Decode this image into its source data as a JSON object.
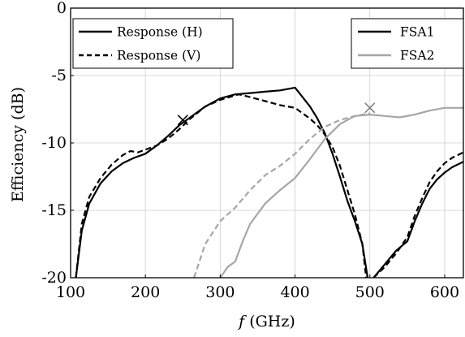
{
  "chart_data": {
    "type": "line",
    "title": "",
    "xlabel_symbol": "f",
    "xlabel_unit": "(GHz)",
    "ylabel": "Efficiency (dB)",
    "xlim": [
      100,
      625
    ],
    "ylim": [
      -20,
      0
    ],
    "xticks": [
      "100",
      "200",
      "300",
      "400",
      "500",
      "600"
    ],
    "yticks": [
      "0",
      "-5",
      "-10",
      "-15",
      "-20"
    ],
    "grid": true,
    "colors": {
      "black": "#000000",
      "gray": "#a6a6a6"
    },
    "legends": [
      {
        "placement": "top-left",
        "entries": [
          {
            "label": "Response (H)",
            "style": "solid",
            "color": "#000000"
          },
          {
            "label": "Response (V)",
            "style": "dashed",
            "color": "#000000"
          }
        ]
      },
      {
        "placement": "top-right",
        "entries": [
          {
            "label": "FSA1",
            "style": "solid",
            "color": "#000000"
          },
          {
            "label": "FSA2",
            "style": "solid",
            "color": "#a6a6a6"
          }
        ]
      }
    ],
    "series": [
      {
        "color": "#000000",
        "style": "solid",
        "x": [
          107,
          115,
          125,
          140,
          155,
          170,
          185,
          200,
          215,
          230,
          245,
          260,
          280,
          300,
          320,
          340,
          360,
          380,
          400,
          410,
          420,
          430,
          440,
          450,
          460,
          470,
          480,
          490,
          497
        ],
        "y": [
          -20,
          -16.5,
          -14.5,
          -13,
          -12.1,
          -11.5,
          -11.1,
          -10.8,
          -10.2,
          -9.5,
          -8.7,
          -8.1,
          -7.3,
          -6.7,
          -6.4,
          -6.3,
          -6.2,
          -6.1,
          -5.9,
          -6.6,
          -7.3,
          -8.2,
          -9.3,
          -10.8,
          -12.5,
          -14.3,
          -15.8,
          -17.5,
          -20
        ]
      },
      {
        "color": "#000000",
        "style": "dashed",
        "x": [
          107,
          115,
          125,
          140,
          155,
          170,
          180,
          190,
          200,
          215,
          230,
          245,
          260,
          280,
          300,
          325,
          340,
          360,
          380,
          400,
          410,
          420,
          430,
          440,
          450,
          460,
          470,
          480,
          490,
          495
        ],
        "y": [
          -20,
          -16,
          -14,
          -12.6,
          -11.6,
          -10.9,
          -10.6,
          -10.7,
          -10.5,
          -10.2,
          -9.7,
          -9,
          -8.2,
          -7.3,
          -6.8,
          -6.4,
          -6.6,
          -6.9,
          -7.2,
          -7.4,
          -7.8,
          -8.2,
          -8.7,
          -9.4,
          -10.3,
          -11.7,
          -13.5,
          -15.3,
          -17.5,
          -20
        ]
      },
      {
        "color": "#a6a6a6",
        "style": "solid",
        "x": [
          300,
          310,
          320,
          330,
          340,
          360,
          380,
          400,
          420,
          440,
          460,
          480,
          500,
          520,
          540,
          560,
          580,
          600,
          625
        ],
        "y": [
          -20,
          -19.2,
          -18.8,
          -17.3,
          -16,
          -14.5,
          -13.5,
          -12.6,
          -11.2,
          -9.7,
          -8.6,
          -8,
          -7.9,
          -8,
          -8.1,
          -7.9,
          -7.6,
          -7.4,
          -7.4
        ]
      },
      {
        "color": "#a6a6a6",
        "style": "dashed",
        "x": [
          265,
          280,
          300,
          320,
          340,
          360,
          380,
          400,
          420,
          440,
          460,
          480,
          500
        ],
        "y": [
          -20,
          -17.5,
          -15.8,
          -14.8,
          -13.5,
          -12.4,
          -11.7,
          -10.8,
          -9.7,
          -8.8,
          -8.3,
          -8,
          -7.8
        ]
      },
      {
        "color": "#000000",
        "style": "solid",
        "x": [
          505,
          520,
          535,
          550,
          560,
          570,
          580,
          590,
          600,
          610,
          625
        ],
        "y": [
          -20,
          -19,
          -18,
          -17.3,
          -15.8,
          -14.5,
          -13.4,
          -12.7,
          -12.2,
          -11.8,
          -11.4
        ]
      },
      {
        "color": "#000000",
        "style": "dashed",
        "x": [
          505,
          520,
          535,
          550,
          560,
          570,
          580,
          590,
          600,
          610,
          625
        ],
        "y": [
          -20,
          -19.2,
          -18.2,
          -17,
          -15.4,
          -14.1,
          -12.9,
          -12.1,
          -11.5,
          -11.1,
          -10.7
        ]
      }
    ],
    "markers": [
      {
        "x": 250,
        "y": -8.3,
        "symbol": "x",
        "color": "#000000"
      },
      {
        "x": 500,
        "y": -7.4,
        "symbol": "x",
        "color": "#808080"
      }
    ]
  }
}
